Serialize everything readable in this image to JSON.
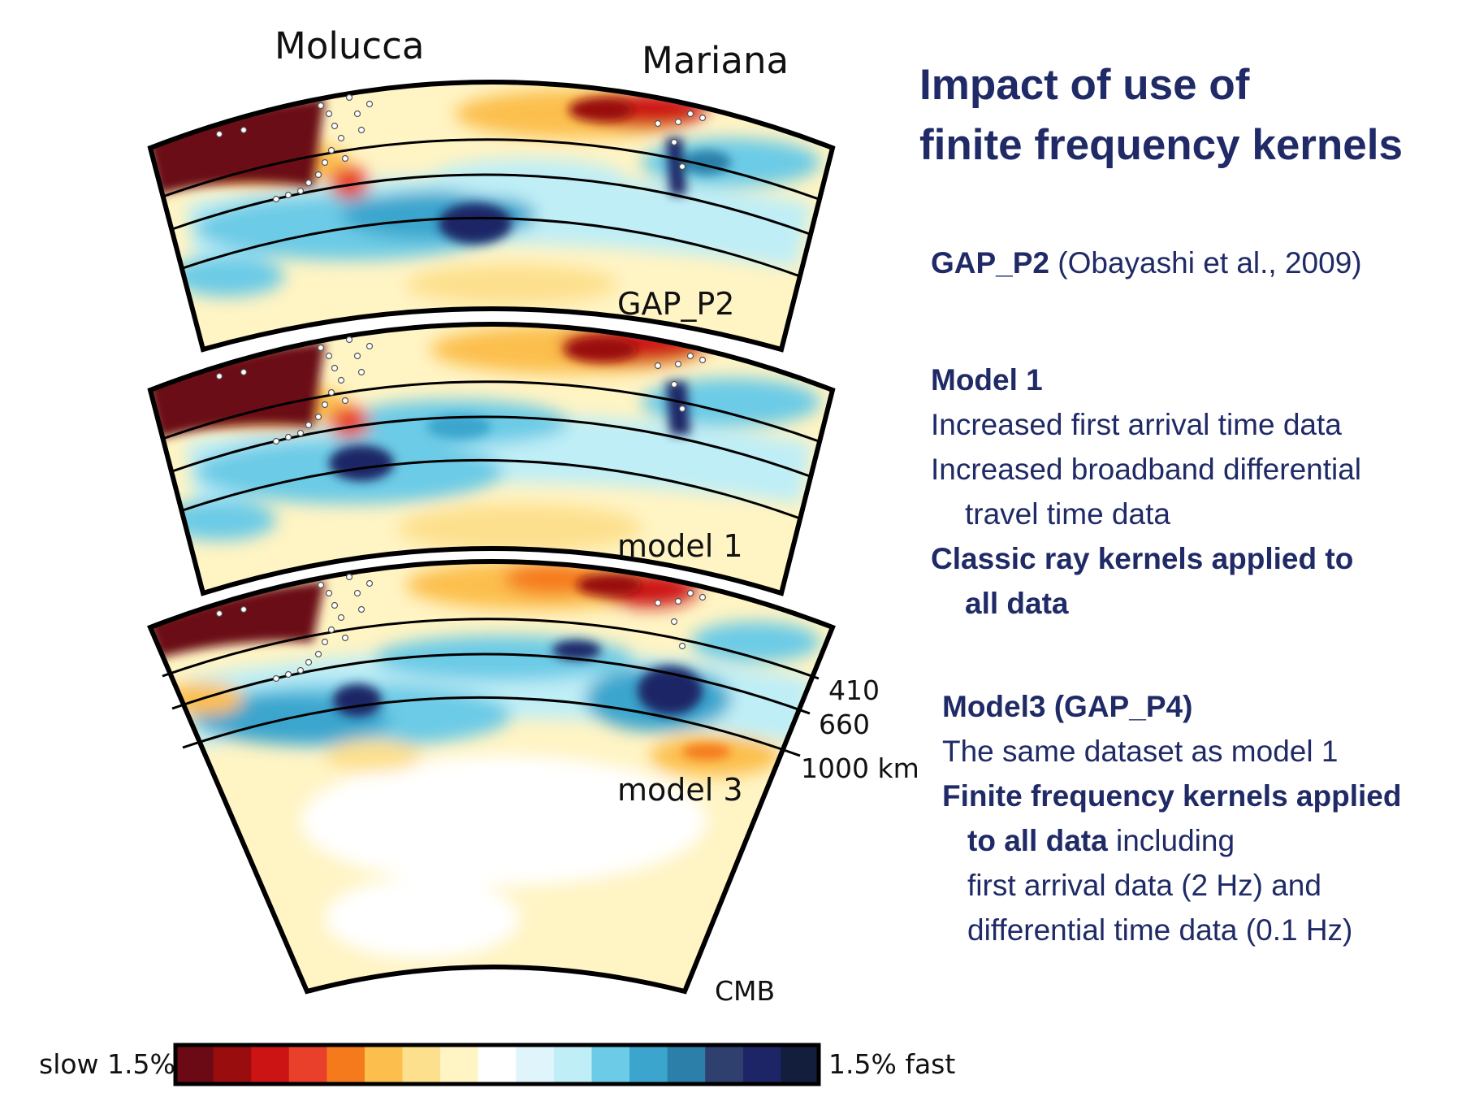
{
  "figure": {
    "region_labels": [
      "Molucca",
      "Mariana"
    ],
    "section_labels": [
      "GAP_P2",
      "model 1",
      "model 3"
    ],
    "depth_labels": [
      "410",
      "660",
      "1000 km",
      "CMB"
    ],
    "colorbar": {
      "left_label": "slow 1.5%",
      "right_label": "1.5% fast",
      "colors": [
        "#6b0a14",
        "#990d0f",
        "#cc1414",
        "#e8402a",
        "#f57a1c",
        "#fcbf4d",
        "#fde08e",
        "#fff4c4",
        "#ffffff",
        "#e0f5fb",
        "#bfeef6",
        "#6ccbe6",
        "#3ba5cd",
        "#2c7fa8",
        "#2f406e",
        "#1d2566",
        "#131d3c"
      ]
    },
    "palette": {
      "deep_red": "#6b0a14",
      "red": "#cc1414",
      "orange": "#f57a1c",
      "yellow": "#fde08e",
      "pale": "#fff4c4",
      "light_blue": "#bfeef6",
      "blue": "#3ba5cd",
      "deep_blue": "#1d2566"
    }
  },
  "text": {
    "title_line1": "Impact of use of",
    "title_line2": "finite frequency kernels",
    "gap_p2_name": "GAP_P2",
    "gap_p2_ref": " (Obayashi et al., 2009)",
    "model1_heading": "Model 1",
    "model1_line1": "Increased first arrival time data",
    "model1_line2": "Increased broadband differential",
    "model1_line3": "travel time data",
    "model1_line4": "Classic ray  kernels applied to",
    "model1_line5": "all data",
    "model3_heading": "Model3  (GAP_P4)",
    "model3_line1": "The same dataset as model 1",
    "model3_line2": "Finite frequency kernels applied",
    "model3_line3_bold": "to all data",
    "model3_line3_rest": " including",
    "model3_line4": "first arrival data (2 Hz) and",
    "model3_line5": "differential time data (0.1 Hz)"
  }
}
